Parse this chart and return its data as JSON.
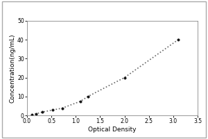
{
  "title": "",
  "xlabel": "Optical Density",
  "ylabel": "Concentration(ng/mL)",
  "xlim": [
    0,
    3.5
  ],
  "ylim": [
    0,
    50
  ],
  "xticks": [
    0,
    0.5,
    1.0,
    1.5,
    2.0,
    2.5,
    3.0,
    3.5
  ],
  "yticks": [
    0,
    10,
    20,
    30,
    40,
    50
  ],
  "x_data": [
    0.1,
    0.18,
    0.32,
    0.52,
    0.72,
    1.1,
    1.25,
    2.0,
    3.1
  ],
  "y_data": [
    0.3,
    0.8,
    1.8,
    2.8,
    3.8,
    7.5,
    10.0,
    20.0,
    40.0
  ],
  "line_color": "#666666",
  "marker_color": "#111111",
  "marker_size": 2.5,
  "line_style": ":",
  "line_width": 1.2,
  "plot_bg": "#ffffff",
  "figure_bg": "#ffffff",
  "tick_label_fontsize": 5.5,
  "axis_label_fontsize": 6.5,
  "spine_color": "#888888"
}
